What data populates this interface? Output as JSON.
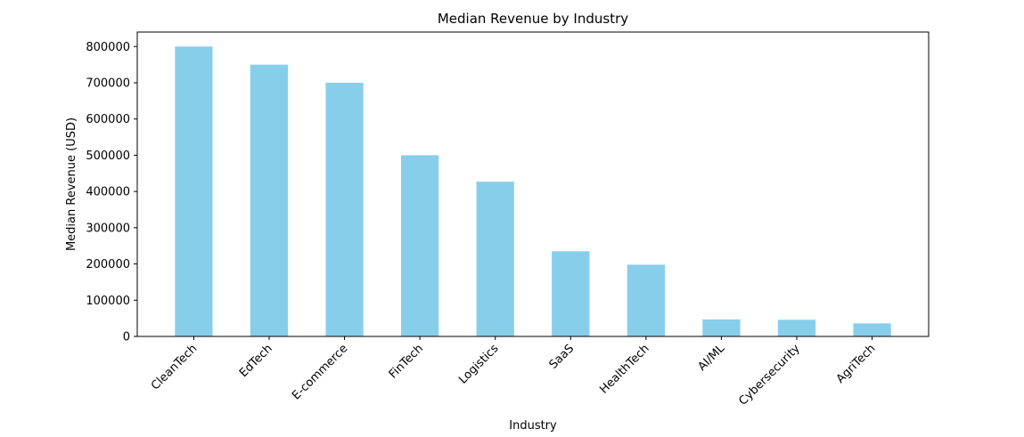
{
  "chart_data": {
    "type": "bar",
    "title": "Median Revenue by Industry",
    "xlabel": "Industry",
    "ylabel": "Median Revenue (USD)",
    "categories": [
      "CleanTech",
      "EdTech",
      "E-commerce",
      "FinTech",
      "Logistics",
      "SaaS",
      "HealthTech",
      "AI/ML",
      "Cybersecurity",
      "AgriTech"
    ],
    "values": [
      800000,
      750000,
      700000,
      500000,
      427000,
      235000,
      198000,
      47000,
      46000,
      36000
    ],
    "yticks": [
      0,
      100000,
      200000,
      300000,
      400000,
      500000,
      600000,
      700000,
      800000
    ],
    "ylim": [
      0,
      840000
    ],
    "bar_color": "#87ceeb",
    "grid": false,
    "legend": "none"
  }
}
